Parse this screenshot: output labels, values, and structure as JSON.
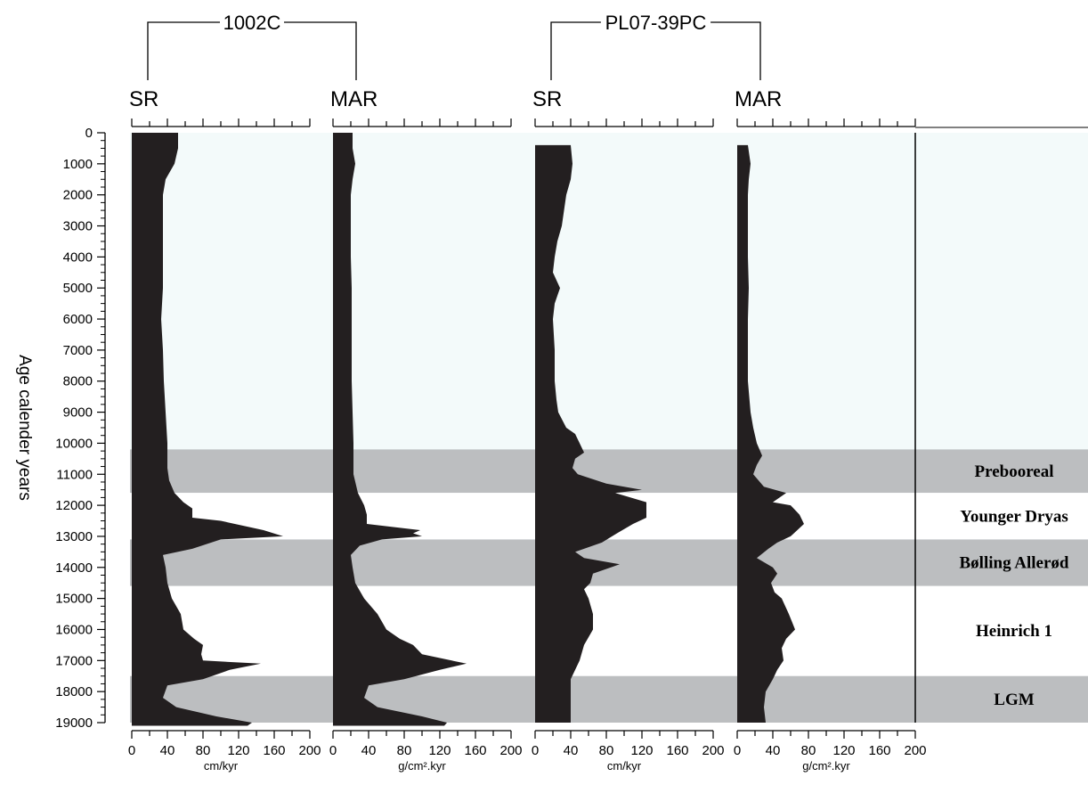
{
  "chart_data": {
    "type": "area",
    "ylabel": "Age calender years",
    "ylim": [
      0,
      19000
    ],
    "y_ticks": [
      "0",
      "1000",
      "2000",
      "3000",
      "4000",
      "5000",
      "6000",
      "7000",
      "8000",
      "9000",
      "10000",
      "11000",
      "12000",
      "13000",
      "14000",
      "15000",
      "16000",
      "17000",
      "18000",
      "19000"
    ],
    "xlim": [
      0,
      200
    ],
    "x_ticks": [
      "0",
      "40",
      "80",
      "120",
      "160",
      "200"
    ],
    "cores": [
      {
        "name": "1002C",
        "columns": [
          0,
          1
        ]
      },
      {
        "name": "PL07-39PC",
        "columns": [
          2,
          3
        ]
      }
    ],
    "columns": [
      {
        "label": "SR",
        "unit": "cm/kyr",
        "series": [
          [
            0,
            52
          ],
          [
            500,
            52
          ],
          [
            1000,
            48
          ],
          [
            1500,
            38
          ],
          [
            2000,
            35
          ],
          [
            3000,
            35
          ],
          [
            4000,
            35
          ],
          [
            5000,
            35
          ],
          [
            6000,
            33
          ],
          [
            7000,
            35
          ],
          [
            8000,
            36
          ],
          [
            9000,
            38
          ],
          [
            10000,
            40
          ],
          [
            10800,
            40
          ],
          [
            11200,
            42
          ],
          [
            11600,
            48
          ],
          [
            11900,
            58
          ],
          [
            12100,
            68
          ],
          [
            12400,
            68
          ],
          [
            12500,
            100
          ],
          [
            12800,
            148
          ],
          [
            13000,
            170
          ],
          [
            13100,
            100
          ],
          [
            13400,
            68
          ],
          [
            13600,
            35
          ],
          [
            14000,
            38
          ],
          [
            14500,
            40
          ],
          [
            15000,
            45
          ],
          [
            15500,
            55
          ],
          [
            16000,
            58
          ],
          [
            16300,
            70
          ],
          [
            16500,
            80
          ],
          [
            16800,
            78
          ],
          [
            17000,
            80
          ],
          [
            17100,
            145
          ],
          [
            17300,
            110
          ],
          [
            17600,
            80
          ],
          [
            17800,
            40
          ],
          [
            18200,
            35
          ],
          [
            18500,
            50
          ],
          [
            18800,
            95
          ],
          [
            19000,
            135
          ],
          [
            19100,
            130
          ]
        ]
      },
      {
        "label": "MAR",
        "unit": "g/cm².kyr",
        "series": [
          [
            0,
            22
          ],
          [
            500,
            22
          ],
          [
            1000,
            25
          ],
          [
            1500,
            22
          ],
          [
            2000,
            20
          ],
          [
            3000,
            20
          ],
          [
            4000,
            20
          ],
          [
            5000,
            21
          ],
          [
            6000,
            21
          ],
          [
            7000,
            21
          ],
          [
            8000,
            21
          ],
          [
            9000,
            22
          ],
          [
            10000,
            23
          ],
          [
            11000,
            23
          ],
          [
            11600,
            28
          ],
          [
            12000,
            35
          ],
          [
            12300,
            38
          ],
          [
            12600,
            38
          ],
          [
            12800,
            98
          ],
          [
            12900,
            90
          ],
          [
            13000,
            100
          ],
          [
            13100,
            55
          ],
          [
            13300,
            30
          ],
          [
            13600,
            20
          ],
          [
            14000,
            22
          ],
          [
            14500,
            25
          ],
          [
            15000,
            35
          ],
          [
            15500,
            50
          ],
          [
            16000,
            60
          ],
          [
            16300,
            75
          ],
          [
            16500,
            90
          ],
          [
            16800,
            100
          ],
          [
            17100,
            150
          ],
          [
            17300,
            120
          ],
          [
            17600,
            80
          ],
          [
            17800,
            40
          ],
          [
            18200,
            35
          ],
          [
            18500,
            50
          ],
          [
            18800,
            100
          ],
          [
            19000,
            128
          ],
          [
            19100,
            125
          ]
        ]
      },
      {
        "label": "SR",
        "unit": "cm/kyr",
        "series": [
          [
            400,
            40
          ],
          [
            1000,
            42
          ],
          [
            1500,
            40
          ],
          [
            2000,
            35
          ],
          [
            3000,
            30
          ],
          [
            3500,
            25
          ],
          [
            4000,
            22
          ],
          [
            4500,
            20
          ],
          [
            5000,
            28
          ],
          [
            5500,
            22
          ],
          [
            6000,
            20
          ],
          [
            7000,
            22
          ],
          [
            8000,
            22
          ],
          [
            8600,
            24
          ],
          [
            9000,
            26
          ],
          [
            9500,
            35
          ],
          [
            9700,
            45
          ],
          [
            10000,
            50
          ],
          [
            10300,
            55
          ],
          [
            10500,
            45
          ],
          [
            10800,
            42
          ],
          [
            11000,
            48
          ],
          [
            11300,
            80
          ],
          [
            11500,
            120
          ],
          [
            11600,
            90
          ],
          [
            11900,
            125
          ],
          [
            12400,
            125
          ],
          [
            12600,
            110
          ],
          [
            12900,
            92
          ],
          [
            13200,
            75
          ],
          [
            13500,
            45
          ],
          [
            13700,
            55
          ],
          [
            13900,
            95
          ],
          [
            14200,
            65
          ],
          [
            14500,
            62
          ],
          [
            14700,
            55
          ],
          [
            15000,
            60
          ],
          [
            15500,
            65
          ],
          [
            16000,
            65
          ],
          [
            16500,
            55
          ],
          [
            17000,
            50
          ],
          [
            17300,
            45
          ],
          [
            17600,
            40
          ],
          [
            18500,
            40
          ],
          [
            19000,
            40
          ]
        ]
      },
      {
        "label": "MAR",
        "unit": "g/cm².kyr",
        "series": [
          [
            400,
            12
          ],
          [
            1000,
            15
          ],
          [
            1500,
            13
          ],
          [
            2000,
            12
          ],
          [
            3000,
            12
          ],
          [
            4000,
            12
          ],
          [
            5000,
            13
          ],
          [
            6000,
            12
          ],
          [
            7000,
            12
          ],
          [
            8000,
            12
          ],
          [
            9000,
            15
          ],
          [
            9500,
            18
          ],
          [
            10000,
            22
          ],
          [
            10400,
            28
          ],
          [
            10700,
            22
          ],
          [
            11000,
            18
          ],
          [
            11400,
            30
          ],
          [
            11600,
            55
          ],
          [
            11900,
            40
          ],
          [
            12000,
            60
          ],
          [
            12300,
            70
          ],
          [
            12600,
            75
          ],
          [
            13000,
            60
          ],
          [
            13200,
            45
          ],
          [
            13400,
            35
          ],
          [
            13700,
            22
          ],
          [
            14000,
            40
          ],
          [
            14200,
            45
          ],
          [
            14500,
            38
          ],
          [
            14800,
            42
          ],
          [
            15000,
            50
          ],
          [
            15500,
            58
          ],
          [
            16000,
            65
          ],
          [
            16300,
            55
          ],
          [
            16600,
            50
          ],
          [
            17000,
            52
          ],
          [
            17300,
            45
          ],
          [
            17600,
            40
          ],
          [
            18000,
            32
          ],
          [
            18500,
            30
          ],
          [
            19000,
            32
          ]
        ]
      }
    ],
    "periods": [
      {
        "name": "Prebooreal",
        "range": [
          10200,
          11600
        ],
        "shaded": true
      },
      {
        "name": "Younger Dryas",
        "range": [
          11600,
          13100
        ],
        "shaded": false
      },
      {
        "name": "Bølling Allerød",
        "range": [
          13100,
          14600
        ],
        "shaded": true
      },
      {
        "name": "Heinrich 1",
        "range": [
          14600,
          17500
        ],
        "shaded": false
      },
      {
        "name": "LGM",
        "range": [
          17500,
          19000
        ],
        "shaded": true
      }
    ],
    "colors": {
      "fill": "#231f20",
      "band": "#bcbec0",
      "background": "#f3fafa"
    }
  }
}
